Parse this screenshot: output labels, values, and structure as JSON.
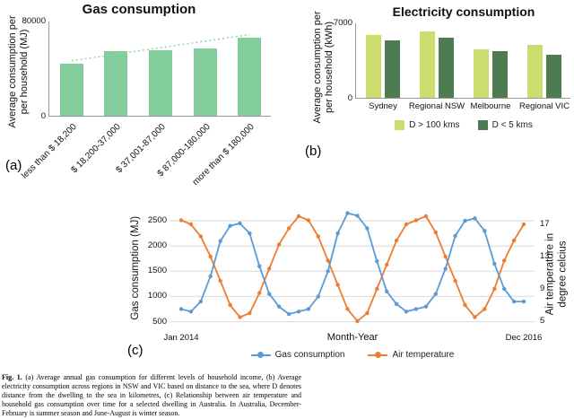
{
  "caption": {
    "label": "Fig. 1.",
    "text": " (a) Average annual gas consumption for different levels of household income, (b) Average electricity consumption across regions in NSW and VIC based on distance to the sea, where D denotes distance from the dwelling to the sea in kilometres, (c) Relationship between air temperature and household gas consumption over time for a selected dwelling in Australia. In Australia, December-February is summer season and June-August is winter season."
  },
  "chart_data": [
    {
      "id": "gas-by-income",
      "type": "bar",
      "title": "Gas consumption",
      "ylabel": "Average consumption per\nper household (MJ)",
      "categories": [
        "less than $ 18,200",
        "$ 18,200-37,000",
        "$ 37,001-87,000",
        "$ 87,000-180,000",
        "more than $ 180,000"
      ],
      "values": [
        44000,
        54000,
        55500,
        57000,
        66000
      ],
      "ylim": [
        0,
        80000
      ],
      "yticks": [
        0,
        80000
      ],
      "bar_color": "#82cd9b",
      "trendline": true,
      "trend_color": "#8fd6ae",
      "panel_label": "(a)"
    },
    {
      "id": "electricity-by-region",
      "type": "bar",
      "title": "Electricity consumption",
      "ylabel": "Average consumption per\nper household (kWh)",
      "categories": [
        "Sydney",
        "Regional NSW",
        "Melbourne",
        "Regional VIC"
      ],
      "series": [
        {
          "name": "D > 100 kms",
          "color": "#ccdd6e",
          "values": [
            5800,
            6200,
            4500,
            4900
          ]
        },
        {
          "name": "D < 5 kms",
          "color": "#4d7c52",
          "values": [
            5300,
            5600,
            4300,
            4000
          ]
        }
      ],
      "ylim": [
        0,
        7000
      ],
      "yticks": [
        0,
        7000
      ],
      "legend_position": "bottom",
      "panel_label": "(b)"
    },
    {
      "id": "gas-vs-temperature-timeseries",
      "type": "line",
      "xlabel": "Month-Year",
      "ylabel_left": "Gas consumption (MJ)",
      "ylabel_right": "Air temperature in\ndegree celcius",
      "xticks": [
        "Jan 2014",
        "Dec 2016"
      ],
      "x_range": [
        "Jan 2014",
        "Dec 2016"
      ],
      "yticks_left": [
        500,
        1000,
        1500,
        2000,
        2500
      ],
      "yticks_right": [
        5,
        9,
        13,
        17
      ],
      "ylim_left": [
        350,
        2750
      ],
      "ylim_right": [
        4,
        19
      ],
      "grid": true,
      "legend_position": "bottom",
      "series": [
        {
          "name": "Gas consumption",
          "axis": "left",
          "color": "#5b9bd5",
          "values": [
            750,
            700,
            900,
            1400,
            2100,
            2400,
            2450,
            2250,
            1600,
            1050,
            800,
            650,
            700,
            750,
            1000,
            1500,
            2250,
            2650,
            2600,
            2350,
            1700,
            1100,
            850,
            700,
            750,
            800,
            1050,
            1550,
            2200,
            2500,
            2550,
            2300,
            1650,
            1150,
            900,
            900
          ]
        },
        {
          "name": "Air temperature",
          "axis": "right",
          "color": "#ed7d31",
          "values": [
            17.5,
            17,
            15.5,
            13,
            10,
            7,
            5.5,
            6,
            8.5,
            11.5,
            14.5,
            16.5,
            18,
            17.5,
            15.5,
            12.5,
            9.5,
            6.5,
            5,
            6,
            9,
            12,
            15,
            17,
            17.5,
            18,
            16,
            13,
            10,
            7,
            5.5,
            6.5,
            9,
            12.5,
            15,
            17
          ]
        }
      ],
      "panel_label": "(c)"
    }
  ]
}
